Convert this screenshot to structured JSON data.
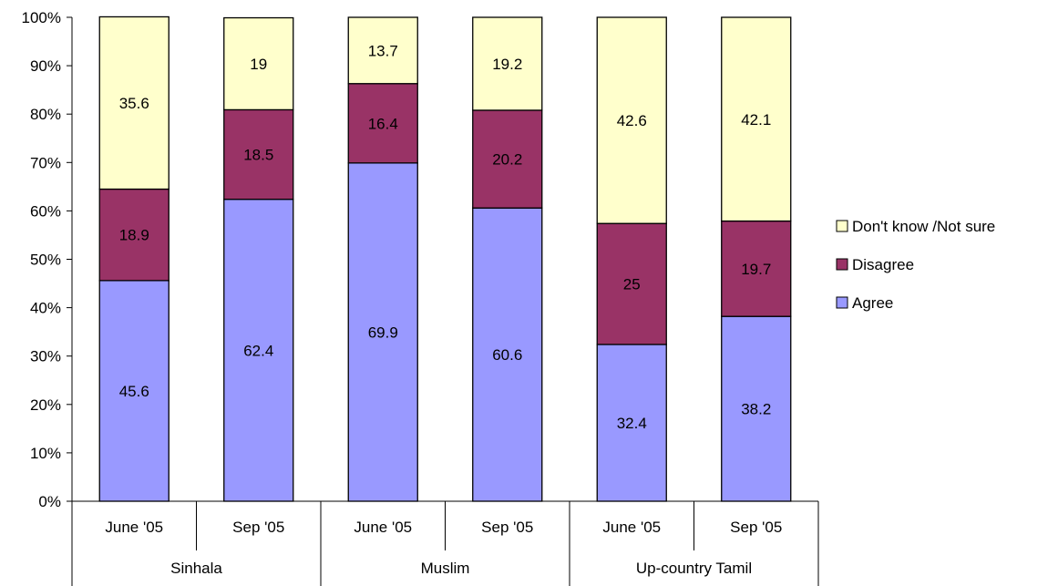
{
  "chart_data": {
    "type": "bar",
    "stacked": true,
    "percent_stacked": true,
    "groups": [
      {
        "label": "Sinhala",
        "categories": [
          "June '05",
          "Sep '05"
        ]
      },
      {
        "label": "Muslim",
        "categories": [
          "June '05",
          "Sep '05"
        ]
      },
      {
        "label": "Up-country Tamil",
        "categories": [
          "June '05",
          "Sep '05"
        ]
      }
    ],
    "categories": [
      "June '05",
      "Sep '05",
      "June '05",
      "Sep '05",
      "June '05",
      "Sep '05"
    ],
    "series": [
      {
        "name": "Agree",
        "color": "#9999ff",
        "values": [
          45.6,
          62.4,
          69.9,
          60.6,
          32.4,
          38.2
        ]
      },
      {
        "name": "Disagree",
        "color": "#993366",
        "values": [
          18.9,
          18.5,
          16.4,
          20.2,
          25,
          19.7
        ]
      },
      {
        "name": "Don't know /Not sure",
        "color": "#ffffcc",
        "values": [
          35.6,
          19,
          13.7,
          19.2,
          42.6,
          42.1
        ]
      }
    ],
    "value_labels": [
      [
        "45.6",
        "62.4",
        "69.9",
        "60.6",
        "32.4",
        "38.2"
      ],
      [
        "18.9",
        "18.5",
        "16.4",
        "20.2",
        "25",
        "19.7"
      ],
      [
        "35.6",
        "19",
        "13.7",
        "19.2",
        "42.6",
        "42.1"
      ]
    ],
    "yticks": [
      "0%",
      "10%",
      "20%",
      "30%",
      "40%",
      "50%",
      "60%",
      "70%",
      "80%",
      "90%",
      "100%"
    ],
    "ylim": [
      0,
      100
    ],
    "legend_position": "right",
    "legend_order": [
      "Don't know /Not sure",
      "Disagree",
      "Agree"
    ],
    "grid": false
  }
}
